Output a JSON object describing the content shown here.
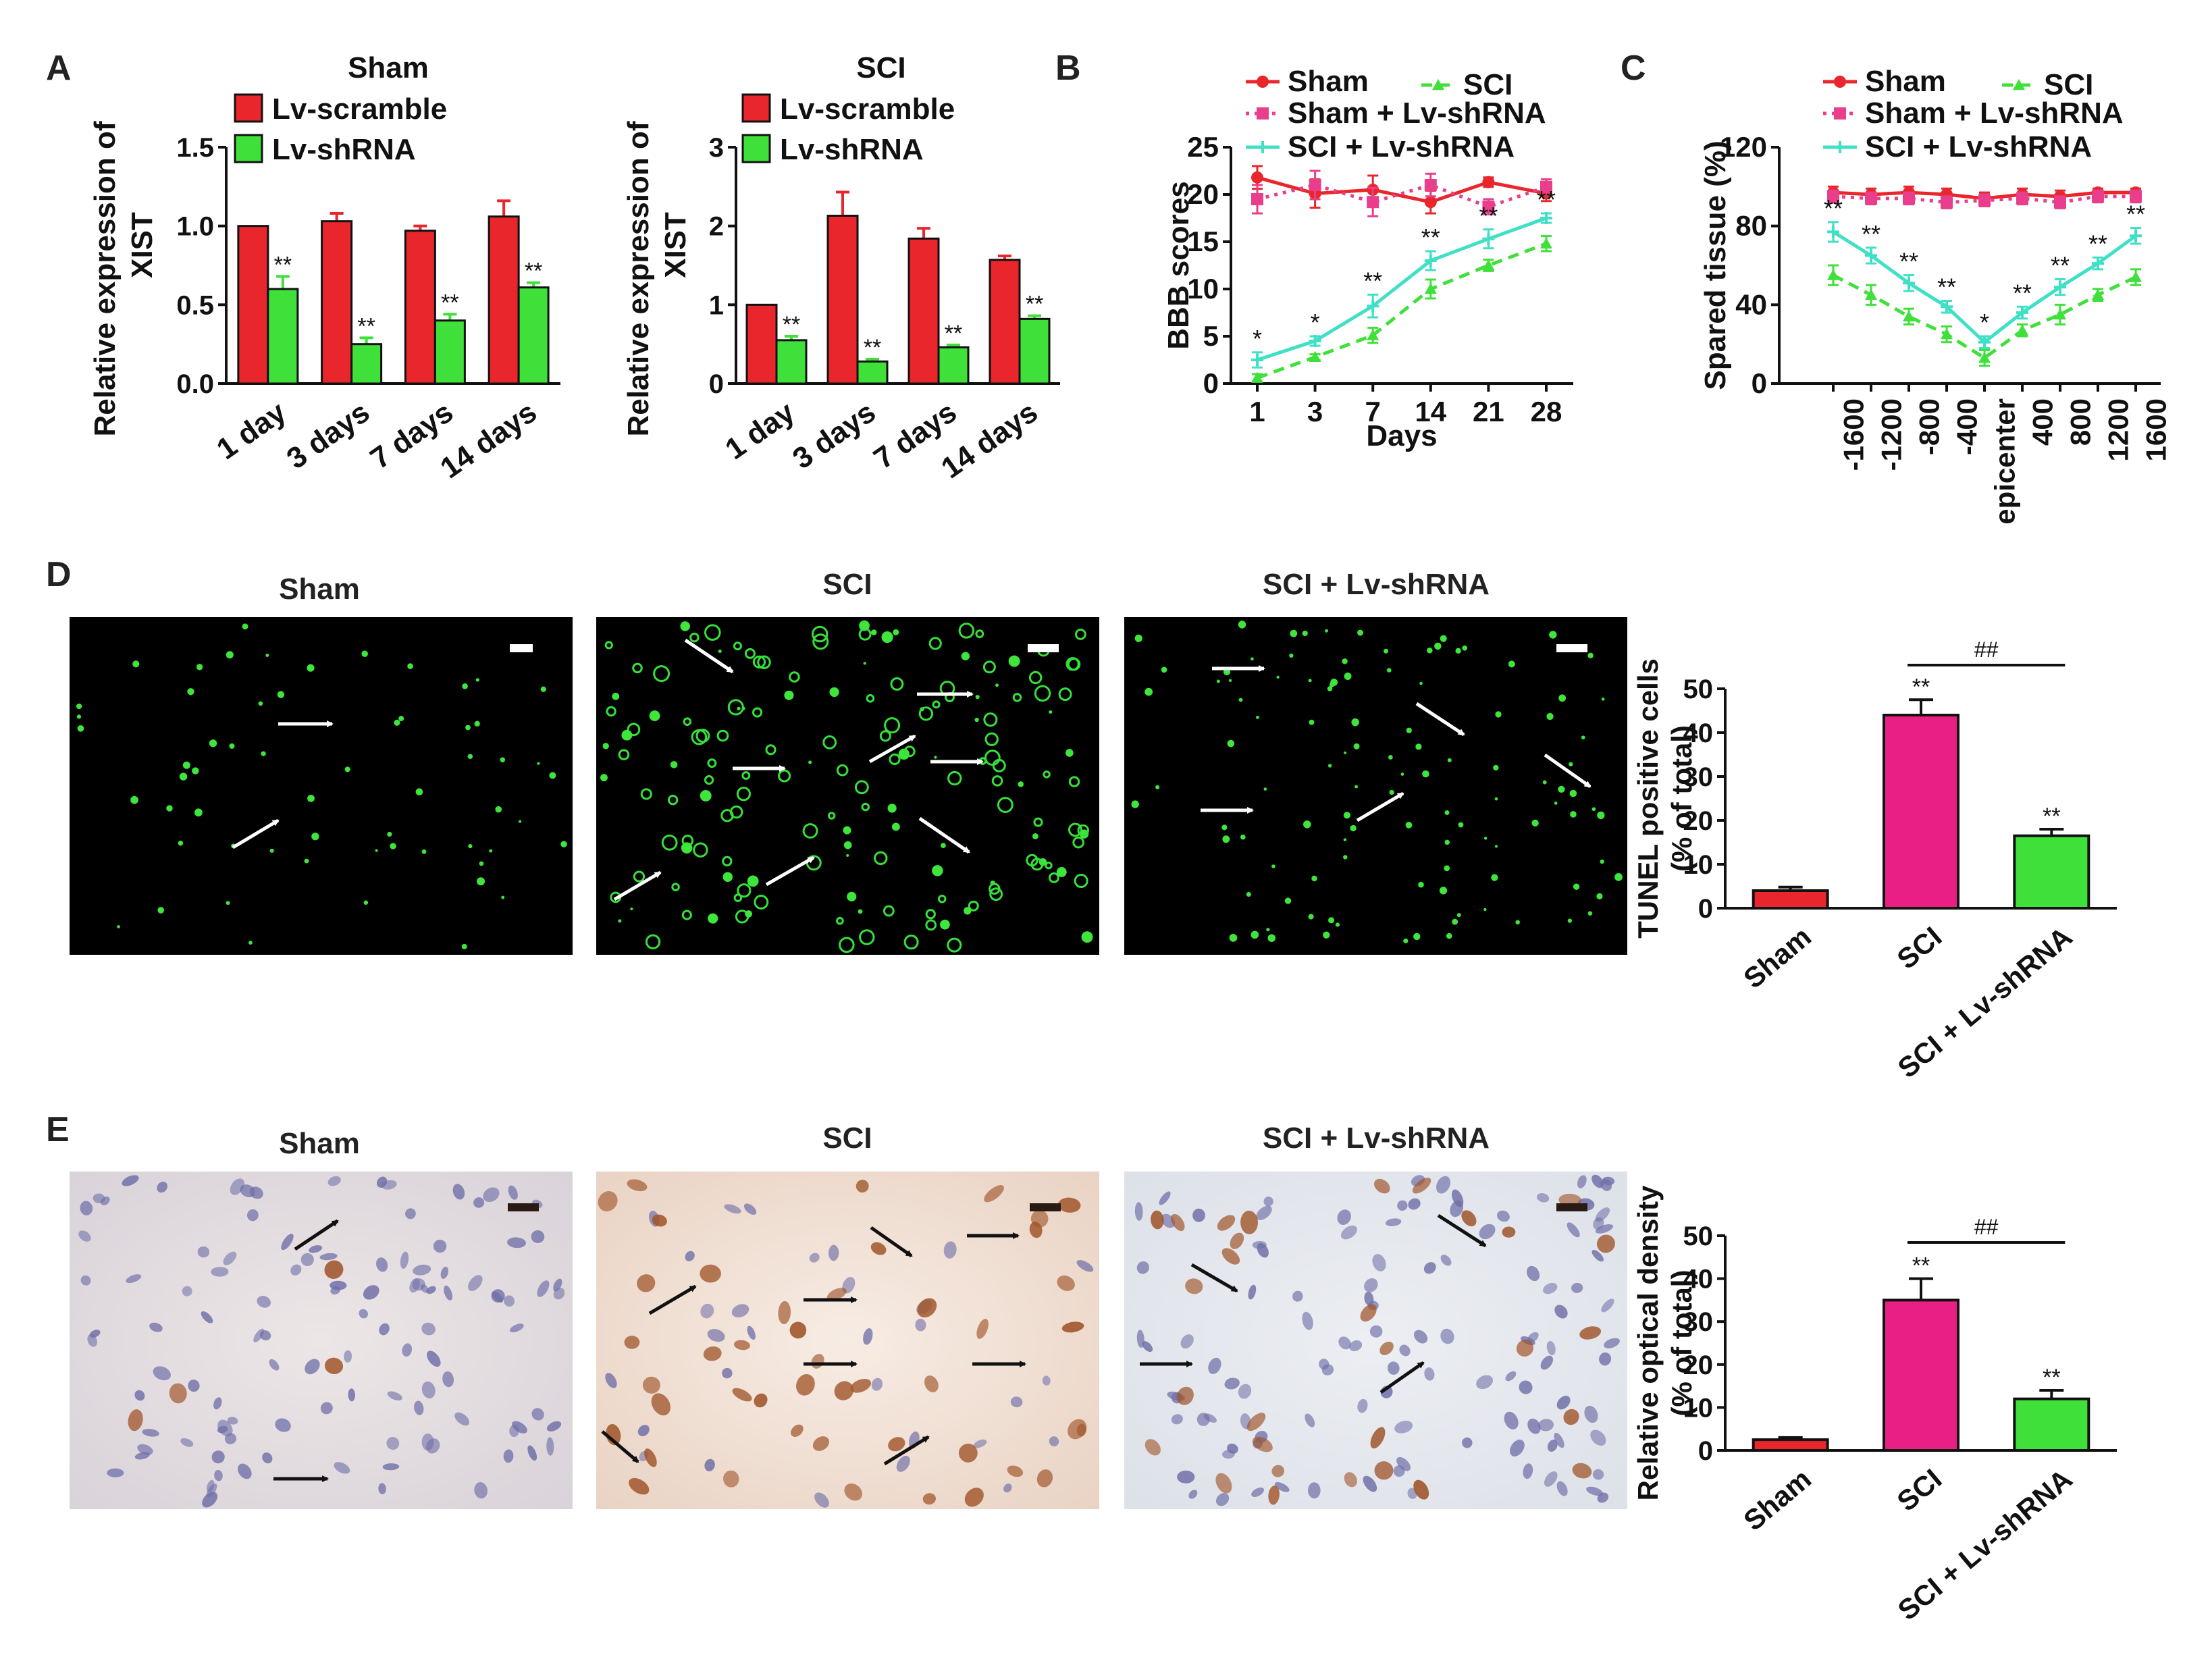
{
  "colors": {
    "red": "#e8262b",
    "green": "#3fe03a",
    "magenta": "#ea1f86",
    "cyan": "#3fe0c6",
    "pink": "#e83e8c",
    "black": "#000000"
  },
  "panel_letters": [
    "A",
    "B",
    "C",
    "D",
    "E"
  ],
  "panel_A": {
    "chart_data": [
      {
        "type": "bar",
        "title": "Sham",
        "ylabel": "Relative expression of XIST",
        "ylim": [
          0,
          1.5
        ],
        "yticks": [
          "0.0",
          "0.5",
          "1.0",
          "1.5"
        ],
        "categories": [
          "1 day",
          "3 days",
          "7 days",
          "14 days"
        ],
        "series": [
          {
            "name": "Lv-scramble",
            "color": "#e8262b",
            "values": [
              1.0,
              1.03,
              0.97,
              1.06
            ],
            "errors": [
              0,
              0.05,
              0.03,
              0.1
            ],
            "sig": [
              "",
              "",
              "",
              ""
            ]
          },
          {
            "name": "Lv-shRNA",
            "color": "#3fe03a",
            "values": [
              0.6,
              0.25,
              0.4,
              0.61
            ],
            "errors": [
              0.08,
              0.04,
              0.04,
              0.03
            ],
            "sig": [
              "**",
              "**",
              "**",
              "**"
            ]
          }
        ]
      },
      {
        "type": "bar",
        "title": "SCI",
        "ylabel": "Relative expression of XIST",
        "ylim": [
          0,
          3
        ],
        "yticks": [
          "0",
          "1",
          "2",
          "3"
        ],
        "categories": [
          "1 day",
          "3 days",
          "7 days",
          "14 days"
        ],
        "series": [
          {
            "name": "Lv-scramble",
            "color": "#e8262b",
            "values": [
              1.0,
              2.13,
              1.84,
              1.57
            ],
            "errors": [
              0,
              0.3,
              0.13,
              0.05
            ],
            "sig": [
              "",
              "",
              "",
              ""
            ]
          },
          {
            "name": "Lv-shRNA",
            "color": "#3fe03a",
            "values": [
              0.55,
              0.28,
              0.46,
              0.82
            ],
            "errors": [
              0.05,
              0.03,
              0.03,
              0.04
            ],
            "sig": [
              "**",
              "**",
              "**",
              "**"
            ]
          }
        ]
      }
    ]
  },
  "panel_B": {
    "chart_data": {
      "type": "line",
      "ylabel": "BBB scores",
      "xlabel": "Days",
      "ylim": [
        0,
        25
      ],
      "yticks": [
        "0",
        "5",
        "10",
        "15",
        "20",
        "25"
      ],
      "x": [
        "1",
        "3",
        "7",
        "14",
        "21",
        "28"
      ],
      "series": [
        {
          "name": "Sham",
          "color": "#e8262b",
          "style": "solid",
          "marker": "circle",
          "values": [
            21.8,
            20.1,
            20.5,
            19.2,
            21.3,
            20.1
          ],
          "errors": [
            1.2,
            1.5,
            1.5,
            1.2,
            0.5,
            0.8
          ]
        },
        {
          "name": "SCI",
          "color": "#3fe03a",
          "style": "dashed",
          "marker": "triangle",
          "values": [
            0.6,
            2.8,
            5.1,
            10.0,
            12.5,
            14.8
          ],
          "errors": [
            0.4,
            0.3,
            0.8,
            1.0,
            0.6,
            0.8
          ]
        },
        {
          "name": "Sham + Lv-shRNA",
          "color": "#e83e8c",
          "style": "dotted",
          "marker": "square",
          "values": [
            19.5,
            21.0,
            19.2,
            21.0,
            18.7,
            20.8
          ],
          "errors": [
            1.5,
            1.5,
            1.5,
            1.2,
            0.8,
            0.8
          ]
        },
        {
          "name": "SCI + Lv-shRNA",
          "color": "#3fe0c6",
          "style": "solid",
          "marker": "star",
          "values": [
            2.5,
            4.5,
            8.2,
            13.0,
            15.3,
            17.5
          ],
          "errors": [
            0.8,
            0.5,
            1.2,
            1.0,
            1.0,
            0.5
          ]
        }
      ],
      "sig": [
        "*",
        "*",
        "**",
        "**",
        "**",
        "**"
      ]
    }
  },
  "panel_C": {
    "chart_data": {
      "type": "line",
      "ylabel": "Spared tissue (%)",
      "ylim": [
        0,
        120
      ],
      "yticks": [
        "0",
        "40",
        "80",
        "120"
      ],
      "x": [
        "-1600",
        "-1200",
        "-800",
        "-400",
        "epicenter",
        "400",
        "800",
        "1200",
        "1600"
      ],
      "series": [
        {
          "name": "Sham",
          "color": "#e8262b",
          "style": "solid",
          "marker": "circle",
          "values": [
            97,
            96,
            97,
            96,
            94,
            96,
            95,
            97,
            97
          ],
          "errors": [
            3,
            3,
            3,
            3,
            3,
            3,
            3,
            2,
            2
          ]
        },
        {
          "name": "SCI",
          "color": "#3fe03a",
          "style": "dashed",
          "marker": "triangle",
          "values": [
            55,
            45,
            34,
            25,
            13,
            27,
            35,
            45,
            54
          ],
          "errors": [
            5,
            5,
            4,
            4,
            4,
            3,
            5,
            3,
            4
          ]
        },
        {
          "name": "Sham + Lv-shRNA",
          "color": "#e83e8c",
          "style": "dotted",
          "marker": "square",
          "values": [
            95,
            94,
            94,
            92,
            93,
            94,
            92,
            95,
            95
          ],
          "errors": [
            3,
            3,
            3,
            3,
            3,
            3,
            3,
            3,
            3
          ]
        },
        {
          "name": "SCI + Lv-shRNA",
          "color": "#3fe0c6",
          "style": "solid",
          "marker": "star",
          "values": [
            77,
            65,
            51,
            39,
            21,
            36,
            49,
            61,
            75
          ],
          "errors": [
            5,
            4,
            4,
            3,
            3,
            3,
            4,
            3,
            4
          ]
        }
      ],
      "sig": [
        "**",
        "**",
        "**",
        "**",
        "*",
        "**",
        "**",
        "**",
        "**"
      ]
    }
  },
  "panel_D": {
    "image_titles": [
      "Sham",
      "SCI",
      "SCI + Lv-shRNA"
    ],
    "chart_data": {
      "type": "bar",
      "ylabel": "TUNEL positive cells (% of total)",
      "ylabel_lines": [
        "TUNEL positive cells",
        "(% of total)"
      ],
      "ylim": [
        0,
        50
      ],
      "yticks": [
        "0",
        "10",
        "20",
        "30",
        "40",
        "50"
      ],
      "categories": [
        "Sham",
        "SCI",
        "SCI + Lv-shRNA"
      ],
      "values": [
        4,
        44,
        16.5
      ],
      "errors": [
        0.8,
        3.5,
        1.5
      ],
      "colors": [
        "#e8262b",
        "#ea1f86",
        "#3fe03a"
      ],
      "sig": [
        "",
        "**",
        "**"
      ],
      "bracket_label": "##"
    }
  },
  "panel_E": {
    "image_titles": [
      "Sham",
      "SCI",
      "SCI + Lv-shRNA"
    ],
    "chart_data": {
      "type": "bar",
      "ylabel": "Relative optical density (% of total)",
      "ylabel_lines": [
        "Relative optical density",
        "(% of total)"
      ],
      "ylim": [
        0,
        50
      ],
      "yticks": [
        "0",
        "10",
        "20",
        "30",
        "40",
        "50"
      ],
      "categories": [
        "Sham",
        "SCI",
        "SCI + Lv-shRNA"
      ],
      "values": [
        2.5,
        35,
        12
      ],
      "errors": [
        0.5,
        5,
        2
      ],
      "colors": [
        "#e8262b",
        "#ea1f86",
        "#3fe03a"
      ],
      "sig": [
        "",
        "**",
        "**"
      ],
      "bracket_label": "##"
    }
  }
}
